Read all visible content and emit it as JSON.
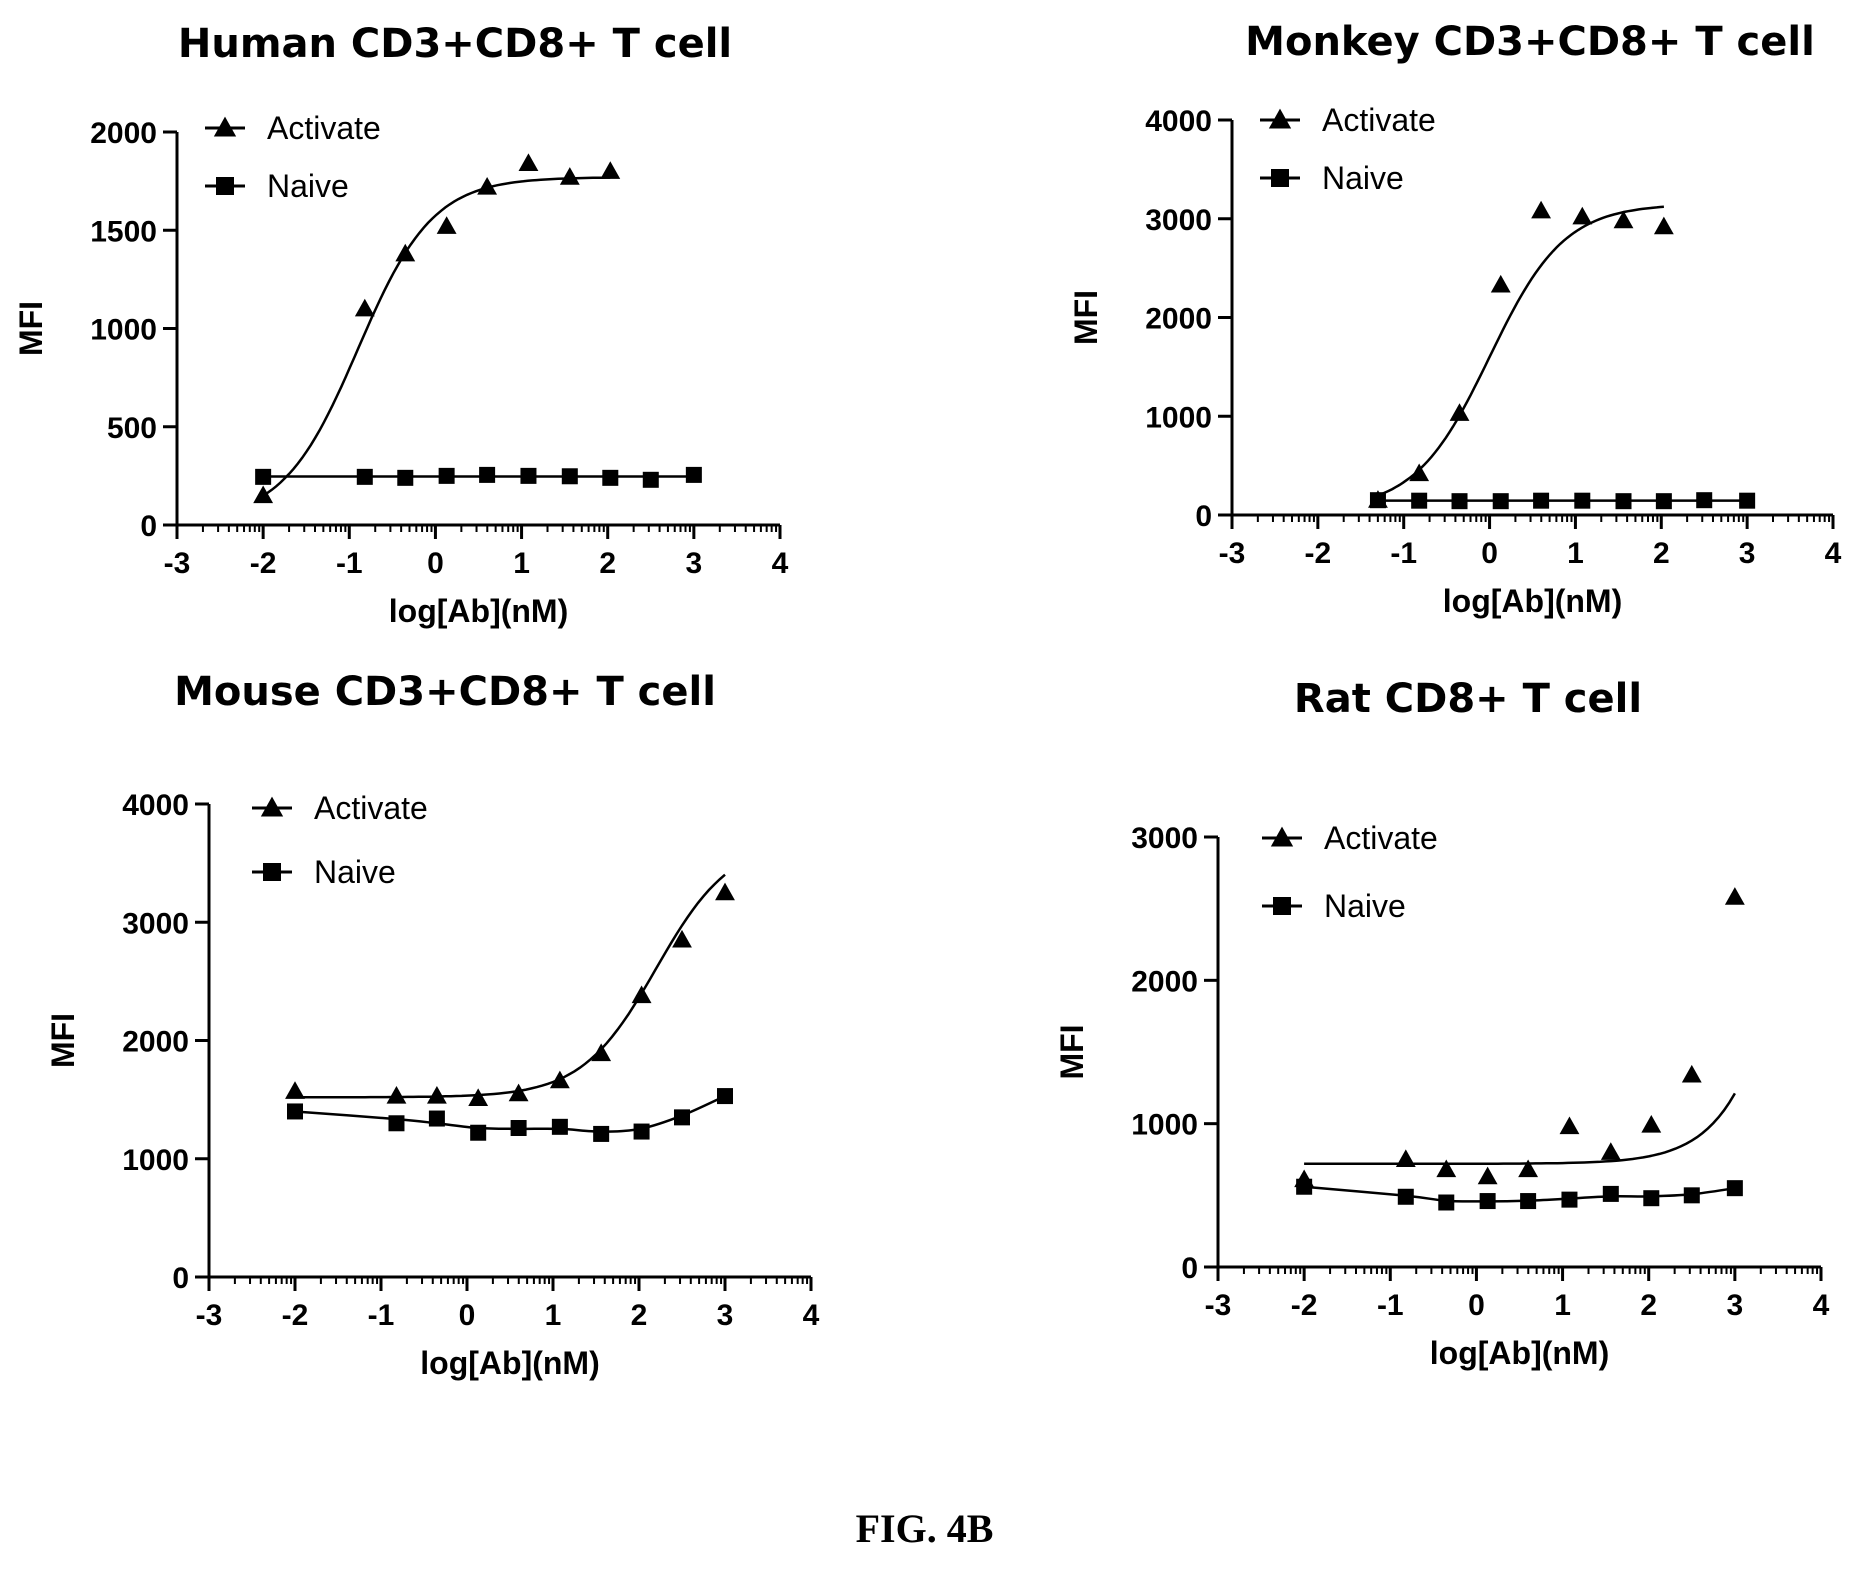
{
  "figure": {
    "caption": "FIG. 4B"
  },
  "chart_data": [
    {
      "type": "line",
      "title": "Human CD3+CD8+ T cell",
      "xlabel": "log[Ab](nM)",
      "ylabel": "MFI",
      "xlim": [
        -3,
        4
      ],
      "ylim": [
        0,
        2000
      ],
      "xticks": [
        -3,
        -2,
        -1,
        0,
        1,
        2,
        3,
        4
      ],
      "yticks": [
        0,
        500,
        1000,
        1500,
        2000
      ],
      "legend_position": "top-left",
      "series": [
        {
          "name": "Activate",
          "marker": "triangle",
          "x": [
            -2.0,
            -0.82,
            -0.35,
            0.13,
            0.6,
            1.08,
            1.56,
            2.03
          ],
          "y": [
            150,
            1100,
            1380,
            1520,
            1720,
            1840,
            1770,
            1800
          ],
          "fit": {
            "kind": "sigmoid",
            "bottom": 20,
            "top": 1770,
            "logEC50": -0.9,
            "hill": 1.0,
            "x_range": [
              -2.0,
              2.03
            ]
          }
        },
        {
          "name": "Naive",
          "marker": "square",
          "x": [
            -2.0,
            -0.82,
            -0.35,
            0.13,
            0.6,
            1.08,
            1.56,
            2.03,
            2.5,
            3.0
          ],
          "y": [
            245,
            245,
            240,
            250,
            255,
            250,
            248,
            240,
            230,
            255
          ],
          "fit": {
            "kind": "flat",
            "value": 247,
            "x_range": [
              -2.0,
              3.0
            ]
          }
        }
      ]
    },
    {
      "type": "line",
      "title": "Monkey CD3+CD8+ T cell",
      "xlabel": "log[Ab](nM)",
      "ylabel": "MFI",
      "xlim": [
        -3,
        4
      ],
      "ylim": [
        0,
        4000
      ],
      "xticks": [
        -3,
        -2,
        -1,
        0,
        1,
        2,
        3,
        4
      ],
      "yticks": [
        0,
        1000,
        2000,
        3000,
        4000
      ],
      "legend_position": "top-left",
      "series": [
        {
          "name": "Activate",
          "marker": "triangle",
          "x": [
            -1.3,
            -0.82,
            -0.35,
            0.13,
            0.6,
            1.08,
            1.56,
            2.03
          ],
          "y": [
            150,
            420,
            1030,
            2330,
            3080,
            3020,
            2980,
            2920
          ],
          "fit": {
            "kind": "sigmoid",
            "bottom": 50,
            "top": 3150,
            "logEC50": 0.0,
            "hill": 1.0,
            "x_range": [
              -1.3,
              2.03
            ]
          }
        },
        {
          "name": "Naive",
          "marker": "square",
          "x": [
            -1.3,
            -0.82,
            -0.35,
            0.13,
            0.6,
            1.08,
            1.56,
            2.03,
            2.5,
            3.0
          ],
          "y": [
            150,
            145,
            140,
            140,
            145,
            145,
            140,
            140,
            150,
            145
          ],
          "fit": {
            "kind": "flat",
            "value": 145,
            "x_range": [
              -1.3,
              3.0
            ]
          }
        }
      ]
    },
    {
      "type": "line",
      "title": "Mouse CD3+CD8+ T cell",
      "xlabel": "log[Ab](nM)",
      "ylabel": "MFI",
      "xlim": [
        -3,
        4
      ],
      "ylim": [
        0,
        4000
      ],
      "xticks": [
        -3,
        -2,
        -1,
        0,
        1,
        2,
        3,
        4
      ],
      "yticks": [
        0,
        1000,
        2000,
        3000,
        4000
      ],
      "legend_position": "top-left",
      "series": [
        {
          "name": "Activate",
          "marker": "triangle",
          "x": [
            -2.0,
            -0.82,
            -0.35,
            0.13,
            0.6,
            1.08,
            1.56,
            2.03,
            2.5,
            3.0
          ],
          "y": [
            1570,
            1530,
            1530,
            1510,
            1550,
            1660,
            1890,
            2380,
            2850,
            3250
          ],
          "fit": {
            "kind": "sigmoid",
            "bottom": 1520,
            "top": 3700,
            "logEC50": 2.2,
            "hill": 1.0,
            "x_range": [
              -2.0,
              3.0
            ]
          }
        },
        {
          "name": "Naive",
          "marker": "square",
          "x": [
            -2.0,
            -0.82,
            -0.35,
            0.13,
            0.6,
            1.08,
            1.56,
            2.03,
            2.5,
            3.0
          ],
          "y": [
            1400,
            1300,
            1340,
            1220,
            1260,
            1270,
            1210,
            1230,
            1350,
            1530
          ],
          "fit": {
            "kind": "spline",
            "x_range": [
              -2.0,
              3.0
            ]
          }
        }
      ]
    },
    {
      "type": "line",
      "title": "Rat CD8+ T cell",
      "xlabel": "log[Ab](nM)",
      "ylabel": "MFI",
      "xlim": [
        -3,
        4
      ],
      "ylim": [
        0,
        3000
      ],
      "xticks": [
        -3,
        -2,
        -1,
        0,
        1,
        2,
        3,
        4
      ],
      "yticks": [
        0,
        1000,
        2000,
        3000
      ],
      "legend_position": "top-left",
      "series": [
        {
          "name": "Activate",
          "marker": "triangle",
          "x": [
            -2.0,
            -0.82,
            -0.35,
            0.13,
            0.6,
            1.08,
            1.56,
            2.03,
            2.5,
            3.0
          ],
          "y": [
            610,
            750,
            680,
            630,
            680,
            980,
            800,
            990,
            1340,
            2580
          ],
          "fit": {
            "kind": "sigmoid",
            "bottom": 720,
            "top": 9000,
            "logEC50": 4.2,
            "hill": 1.0,
            "x_range": [
              -2.0,
              3.0
            ]
          }
        },
        {
          "name": "Naive",
          "marker": "square",
          "x": [
            -2.0,
            -0.82,
            -0.35,
            0.13,
            0.6,
            1.08,
            1.56,
            2.03,
            2.5,
            3.0
          ],
          "y": [
            560,
            490,
            450,
            460,
            460,
            470,
            510,
            480,
            500,
            550
          ],
          "fit": {
            "kind": "spline",
            "x_range": [
              -2.0,
              3.0
            ]
          }
        }
      ]
    }
  ]
}
